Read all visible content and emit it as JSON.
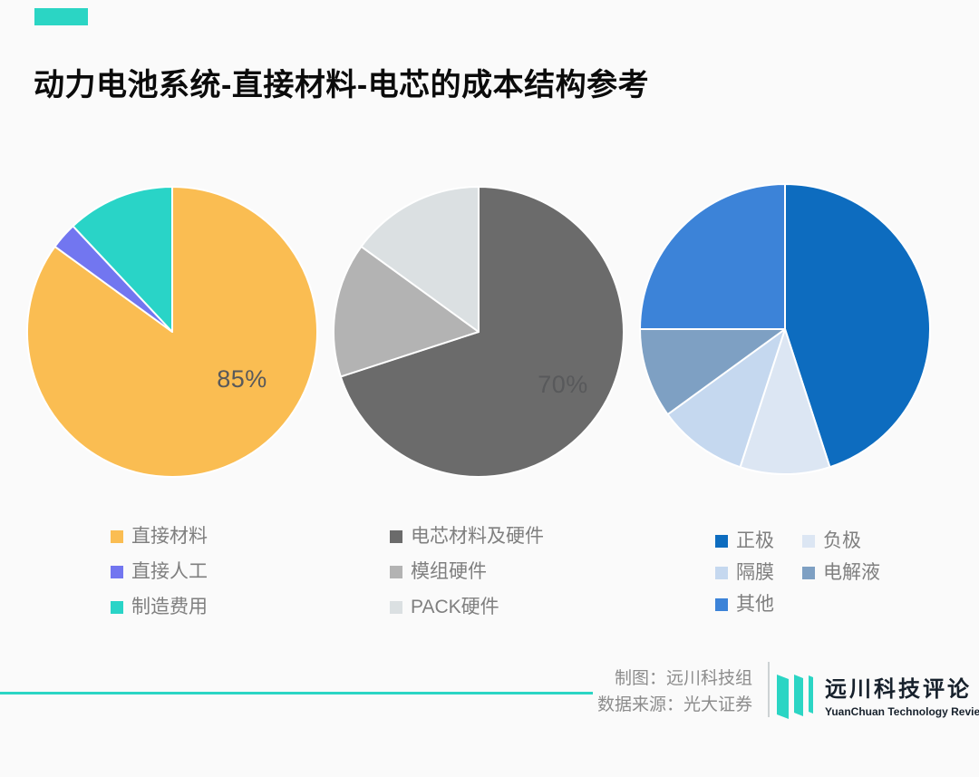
{
  "title": "动力电池系统-直接材料-电芯的成本结构参考",
  "colors": {
    "accent": "#2BD5C4",
    "background": "#FAFAFA",
    "datalabel_text": "#58595B",
    "legend_text": "#7F7F7F"
  },
  "chart_data": [
    {
      "type": "pie",
      "unit": "%",
      "datalabel": "85%",
      "legend_position": "bottom",
      "legend_columns": 1,
      "slices": [
        {
          "label": "直接材料",
          "value": 85,
          "color": "#FABD52"
        },
        {
          "label": "直接人工",
          "value": 3,
          "color": "#7276F0"
        },
        {
          "label": "制造费用",
          "value": 12,
          "color": "#29D4C7"
        }
      ]
    },
    {
      "type": "pie",
      "unit": "%",
      "datalabel": "70%",
      "legend_position": "bottom",
      "legend_columns": 1,
      "slices": [
        {
          "label": "电芯材料及硬件",
          "value": 70,
          "color": "#6B6B6B"
        },
        {
          "label": "模组硬件",
          "value": 15,
          "color": "#B3B3B3"
        },
        {
          "label": "PACK硬件",
          "value": 15,
          "color": "#DBE0E2"
        }
      ]
    },
    {
      "type": "pie",
      "unit": "%",
      "datalabel": "",
      "legend_position": "bottom",
      "legend_columns": 2,
      "slices": [
        {
          "label": "正极",
          "value": 45,
          "color": "#0D6CBF"
        },
        {
          "label": "负极",
          "value": 10,
          "color": "#DCE6F3"
        },
        {
          "label": "隔膜",
          "value": 10,
          "color": "#C5D8EF"
        },
        {
          "label": "电解液",
          "value": 10,
          "color": "#7EA0C3"
        },
        {
          "label": "其他",
          "value": 25,
          "color": "#3C83D8"
        }
      ]
    }
  ],
  "footer": {
    "credit_line1": "制图：远川科技组",
    "credit_line2": "数据来源：光大证券",
    "logo_cn": "远川科技评论",
    "logo_en": "YuanChuan Technology Review"
  }
}
